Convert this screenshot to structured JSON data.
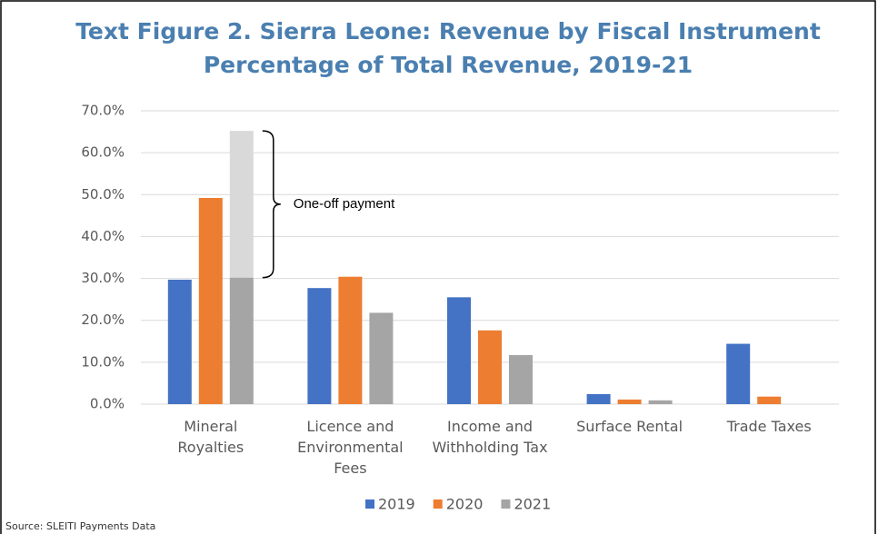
{
  "chart_data": {
    "type": "bar",
    "title": "Text Figure 2. Sierra Leone: Revenue by Fiscal Instrument",
    "subtitle": "Percentage of Total Revenue, 2019-21",
    "categories": [
      "Mineral\nRoyalties",
      "Licence and\nEnvironmental\nFees",
      "Income and\nWithholding Tax",
      "Surface Rental",
      "Trade Taxes"
    ],
    "series": [
      {
        "name": "2019",
        "color": "#4472c4",
        "values": [
          29.7,
          27.7,
          25.5,
          2.4,
          14.4
        ]
      },
      {
        "name": "2020",
        "color": "#ed7d31",
        "values": [
          49.2,
          30.4,
          17.6,
          1.1,
          1.8
        ]
      },
      {
        "name": "2021",
        "color": "#a5a5a5",
        "values": [
          30.2,
          21.8,
          11.7,
          0.9,
          null
        ]
      }
    ],
    "annotation": {
      "text": "One-off payment",
      "value": 35.0,
      "category": 0,
      "series": 2,
      "color": "#d9d9d9"
    },
    "ylim": [
      0,
      70
    ],
    "yticks": [
      {
        "value": 0,
        "label": "0.0%"
      },
      {
        "value": 10,
        "label": "10.0%"
      },
      {
        "value": 20,
        "label": "20.0%"
      },
      {
        "value": 30,
        "label": "30.0%"
      },
      {
        "value": 40,
        "label": "40.0%"
      },
      {
        "value": 50,
        "label": "50.0%"
      },
      {
        "value": 60,
        "label": "60.0%"
      },
      {
        "value": 70,
        "label": "70.0%"
      }
    ],
    "grid": true,
    "legend": "bottom",
    "source": "Source: SLEITI Payments Data"
  }
}
